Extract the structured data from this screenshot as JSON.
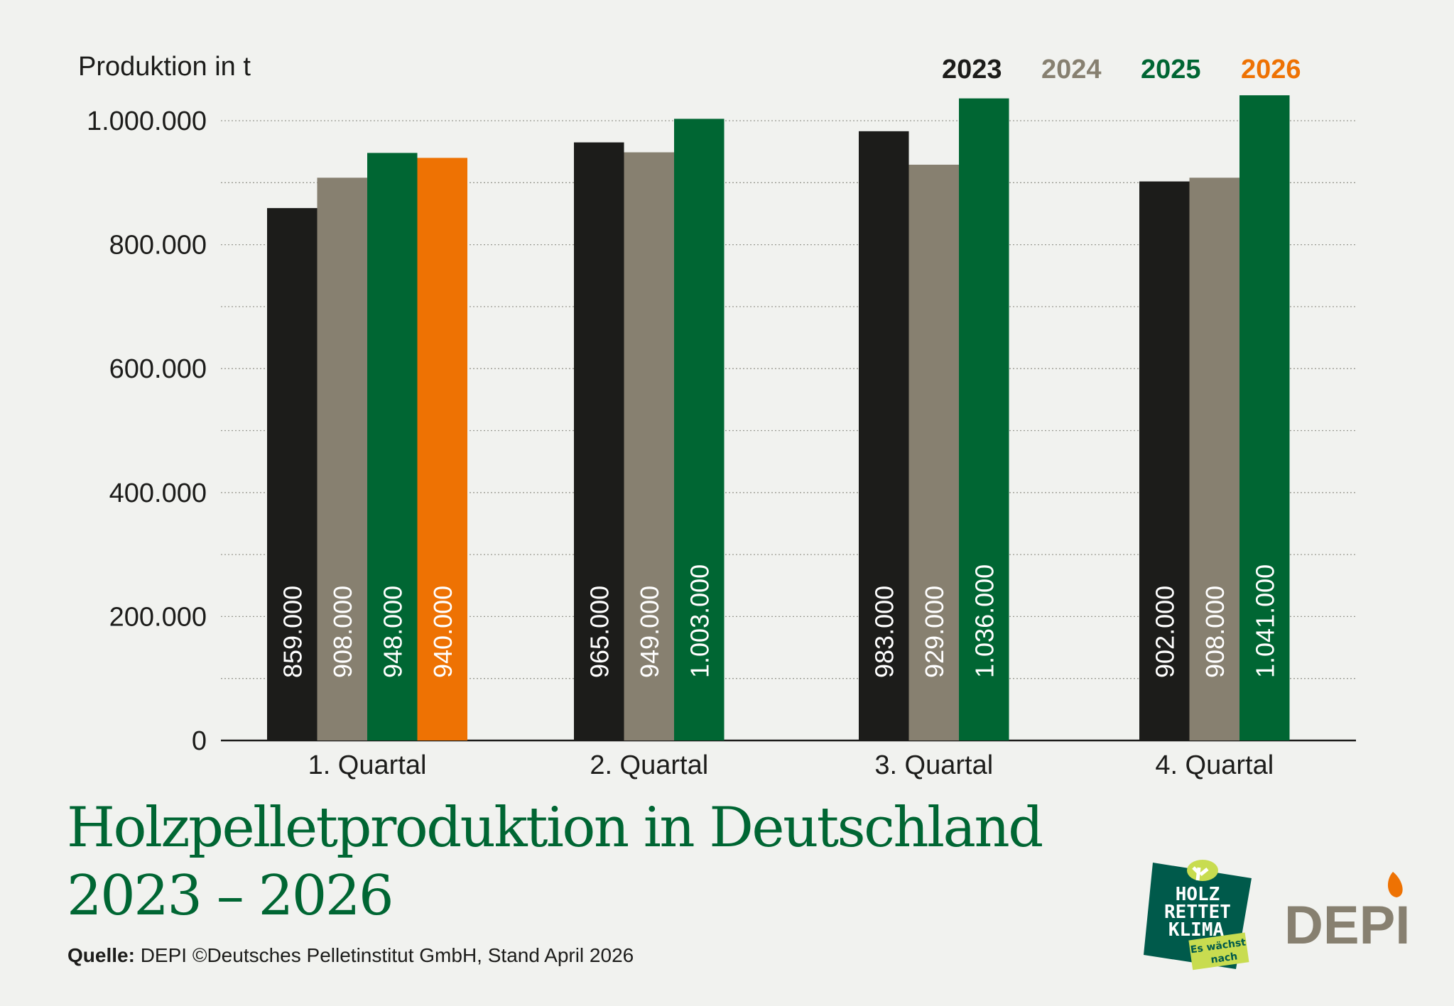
{
  "chart_data": {
    "type": "bar",
    "title": "Holzpelletproduktion in Deutschland",
    "subtitle": "2023 – 2026",
    "ylabel": "Produktion in t",
    "xlabel": "",
    "ylim": [
      0,
      1000000
    ],
    "yticks": [
      0,
      200000,
      400000,
      600000,
      800000,
      1000000
    ],
    "ytick_labels": [
      "0",
      "200.000",
      "400.000",
      "600.000",
      "800.000",
      "1.000.000"
    ],
    "grid": true,
    "legend_position": "top-right",
    "categories": [
      "1. Quartal",
      "2. Quartal",
      "3. Quartal",
      "4. Quartal"
    ],
    "series": [
      {
        "name": "2023",
        "color": "#1c1c1a",
        "values": [
          859000,
          965000,
          983000,
          902000
        ],
        "labels": [
          "859.000",
          "965.000",
          "983.000",
          "902.000"
        ]
      },
      {
        "name": "2024",
        "color": "#878070",
        "values": [
          908000,
          949000,
          929000,
          908000
        ],
        "labels": [
          "908.000",
          "949.000",
          "929.000",
          "908.000"
        ]
      },
      {
        "name": "2025",
        "color": "#006633",
        "values": [
          948000,
          1003000,
          1036000,
          1041000
        ],
        "labels": [
          "948.000",
          "1.003.000",
          "1.036.000",
          "1.041.000"
        ]
      },
      {
        "name": "2026",
        "color": "#ee7203",
        "values": [
          940000,
          null,
          null,
          null
        ],
        "labels": [
          "940.000",
          null,
          null,
          null
        ]
      }
    ]
  },
  "source": {
    "label": "Quelle:",
    "text": "DEPI  ©Deutsches Pelletinstitut GmbH, Stand April 2026"
  },
  "logos": {
    "campaign": {
      "lines": [
        "HOLZ",
        "RETTET",
        "KLIMA"
      ],
      "tagline": [
        "Es wächst",
        "nach"
      ],
      "colors": {
        "bg": "#005a4b",
        "accent": "#c8dc50"
      }
    },
    "depi": {
      "text": "DEPI",
      "color": "#878070",
      "flame_color": "#ee7203"
    }
  }
}
